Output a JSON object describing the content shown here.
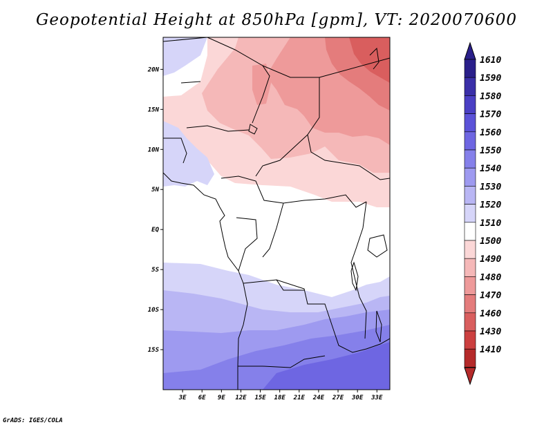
{
  "title": "Geopotential Height at 850hPa [gpm], VT: 2020070600",
  "credit": "GrADS: IGES/COLA",
  "map": {
    "lon_range": [
      0,
      35
    ],
    "lat_range": [
      -20,
      24
    ],
    "lat_ticks": [
      {
        "value": 20,
        "label": "20N"
      },
      {
        "value": 15,
        "label": "15N"
      },
      {
        "value": 10,
        "label": "10N"
      },
      {
        "value": 5,
        "label": "5N"
      },
      {
        "value": 0,
        "label": "EQ"
      },
      {
        "value": -5,
        "label": "5S"
      },
      {
        "value": -10,
        "label": "10S"
      },
      {
        "value": -15,
        "label": "15S"
      }
    ],
    "lon_ticks": [
      {
        "value": 3,
        "label": "3E"
      },
      {
        "value": 6,
        "label": "6E"
      },
      {
        "value": 9,
        "label": "9E"
      },
      {
        "value": 12,
        "label": "12E"
      },
      {
        "value": 15,
        "label": "15E"
      },
      {
        "value": 18,
        "label": "18E"
      },
      {
        "value": 21,
        "label": "21E"
      },
      {
        "value": 24,
        "label": "24E"
      },
      {
        "value": 27,
        "label": "27E"
      },
      {
        "value": 30,
        "label": "30E"
      },
      {
        "value": 33,
        "label": "33E"
      }
    ]
  },
  "colorbar": {
    "labels": [
      "1610",
      "1590",
      "1580",
      "1570",
      "1560",
      "1550",
      "1540",
      "1530",
      "1520",
      "1510",
      "1500",
      "1490",
      "1480",
      "1470",
      "1460",
      "1430",
      "1410"
    ],
    "colors": [
      "#2a1f8a",
      "#3a2fa8",
      "#4a3fc4",
      "#5b52d8",
      "#6e66e2",
      "#8580ea",
      "#9e9af0",
      "#b9b6f4",
      "#d6d5f9",
      "#ffffff",
      "#fbd7d7",
      "#f5b8b8",
      "#ee9a9a",
      "#e47c7c",
      "#d95e5e",
      "#cc4040",
      "#b52a2a"
    ]
  }
}
